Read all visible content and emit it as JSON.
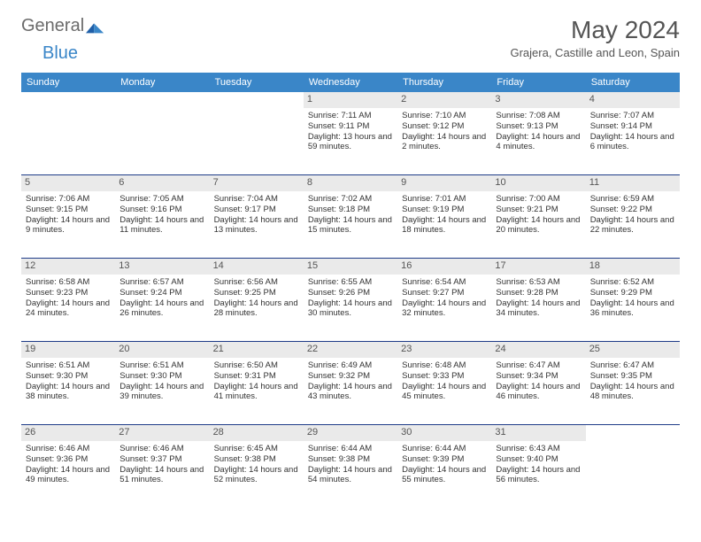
{
  "brand": {
    "part1": "General",
    "part2": "Blue"
  },
  "title": "May 2024",
  "location": "Grajera, Castille and Leon, Spain",
  "colors": {
    "header_bg": "#3a86c8",
    "header_text": "#ffffff",
    "daynum_bg": "#eaeaea",
    "body_bg": "#ffffff",
    "text": "#333333",
    "rule": "#1f3c88",
    "brand_gray": "#6b6b6b",
    "brand_blue": "#3a86c8"
  },
  "weekdays": [
    "Sunday",
    "Monday",
    "Tuesday",
    "Wednesday",
    "Thursday",
    "Friday",
    "Saturday"
  ],
  "weeks": [
    [
      null,
      null,
      null,
      {
        "n": "1",
        "sr": "7:11 AM",
        "ss": "9:11 PM",
        "dl": "13 hours and 59 minutes."
      },
      {
        "n": "2",
        "sr": "7:10 AM",
        "ss": "9:12 PM",
        "dl": "14 hours and 2 minutes."
      },
      {
        "n": "3",
        "sr": "7:08 AM",
        "ss": "9:13 PM",
        "dl": "14 hours and 4 minutes."
      },
      {
        "n": "4",
        "sr": "7:07 AM",
        "ss": "9:14 PM",
        "dl": "14 hours and 6 minutes."
      }
    ],
    [
      {
        "n": "5",
        "sr": "7:06 AM",
        "ss": "9:15 PM",
        "dl": "14 hours and 9 minutes."
      },
      {
        "n": "6",
        "sr": "7:05 AM",
        "ss": "9:16 PM",
        "dl": "14 hours and 11 minutes."
      },
      {
        "n": "7",
        "sr": "7:04 AM",
        "ss": "9:17 PM",
        "dl": "14 hours and 13 minutes."
      },
      {
        "n": "8",
        "sr": "7:02 AM",
        "ss": "9:18 PM",
        "dl": "14 hours and 15 minutes."
      },
      {
        "n": "9",
        "sr": "7:01 AM",
        "ss": "9:19 PM",
        "dl": "14 hours and 18 minutes."
      },
      {
        "n": "10",
        "sr": "7:00 AM",
        "ss": "9:21 PM",
        "dl": "14 hours and 20 minutes."
      },
      {
        "n": "11",
        "sr": "6:59 AM",
        "ss": "9:22 PM",
        "dl": "14 hours and 22 minutes."
      }
    ],
    [
      {
        "n": "12",
        "sr": "6:58 AM",
        "ss": "9:23 PM",
        "dl": "14 hours and 24 minutes."
      },
      {
        "n": "13",
        "sr": "6:57 AM",
        "ss": "9:24 PM",
        "dl": "14 hours and 26 minutes."
      },
      {
        "n": "14",
        "sr": "6:56 AM",
        "ss": "9:25 PM",
        "dl": "14 hours and 28 minutes."
      },
      {
        "n": "15",
        "sr": "6:55 AM",
        "ss": "9:26 PM",
        "dl": "14 hours and 30 minutes."
      },
      {
        "n": "16",
        "sr": "6:54 AM",
        "ss": "9:27 PM",
        "dl": "14 hours and 32 minutes."
      },
      {
        "n": "17",
        "sr": "6:53 AM",
        "ss": "9:28 PM",
        "dl": "14 hours and 34 minutes."
      },
      {
        "n": "18",
        "sr": "6:52 AM",
        "ss": "9:29 PM",
        "dl": "14 hours and 36 minutes."
      }
    ],
    [
      {
        "n": "19",
        "sr": "6:51 AM",
        "ss": "9:30 PM",
        "dl": "14 hours and 38 minutes."
      },
      {
        "n": "20",
        "sr": "6:51 AM",
        "ss": "9:30 PM",
        "dl": "14 hours and 39 minutes."
      },
      {
        "n": "21",
        "sr": "6:50 AM",
        "ss": "9:31 PM",
        "dl": "14 hours and 41 minutes."
      },
      {
        "n": "22",
        "sr": "6:49 AM",
        "ss": "9:32 PM",
        "dl": "14 hours and 43 minutes."
      },
      {
        "n": "23",
        "sr": "6:48 AM",
        "ss": "9:33 PM",
        "dl": "14 hours and 45 minutes."
      },
      {
        "n": "24",
        "sr": "6:47 AM",
        "ss": "9:34 PM",
        "dl": "14 hours and 46 minutes."
      },
      {
        "n": "25",
        "sr": "6:47 AM",
        "ss": "9:35 PM",
        "dl": "14 hours and 48 minutes."
      }
    ],
    [
      {
        "n": "26",
        "sr": "6:46 AM",
        "ss": "9:36 PM",
        "dl": "14 hours and 49 minutes."
      },
      {
        "n": "27",
        "sr": "6:46 AM",
        "ss": "9:37 PM",
        "dl": "14 hours and 51 minutes."
      },
      {
        "n": "28",
        "sr": "6:45 AM",
        "ss": "9:38 PM",
        "dl": "14 hours and 52 minutes."
      },
      {
        "n": "29",
        "sr": "6:44 AM",
        "ss": "9:38 PM",
        "dl": "14 hours and 54 minutes."
      },
      {
        "n": "30",
        "sr": "6:44 AM",
        "ss": "9:39 PM",
        "dl": "14 hours and 55 minutes."
      },
      {
        "n": "31",
        "sr": "6:43 AM",
        "ss": "9:40 PM",
        "dl": "14 hours and 56 minutes."
      },
      null
    ]
  ],
  "labels": {
    "sunrise": "Sunrise:",
    "sunset": "Sunset:",
    "daylight": "Daylight:"
  }
}
